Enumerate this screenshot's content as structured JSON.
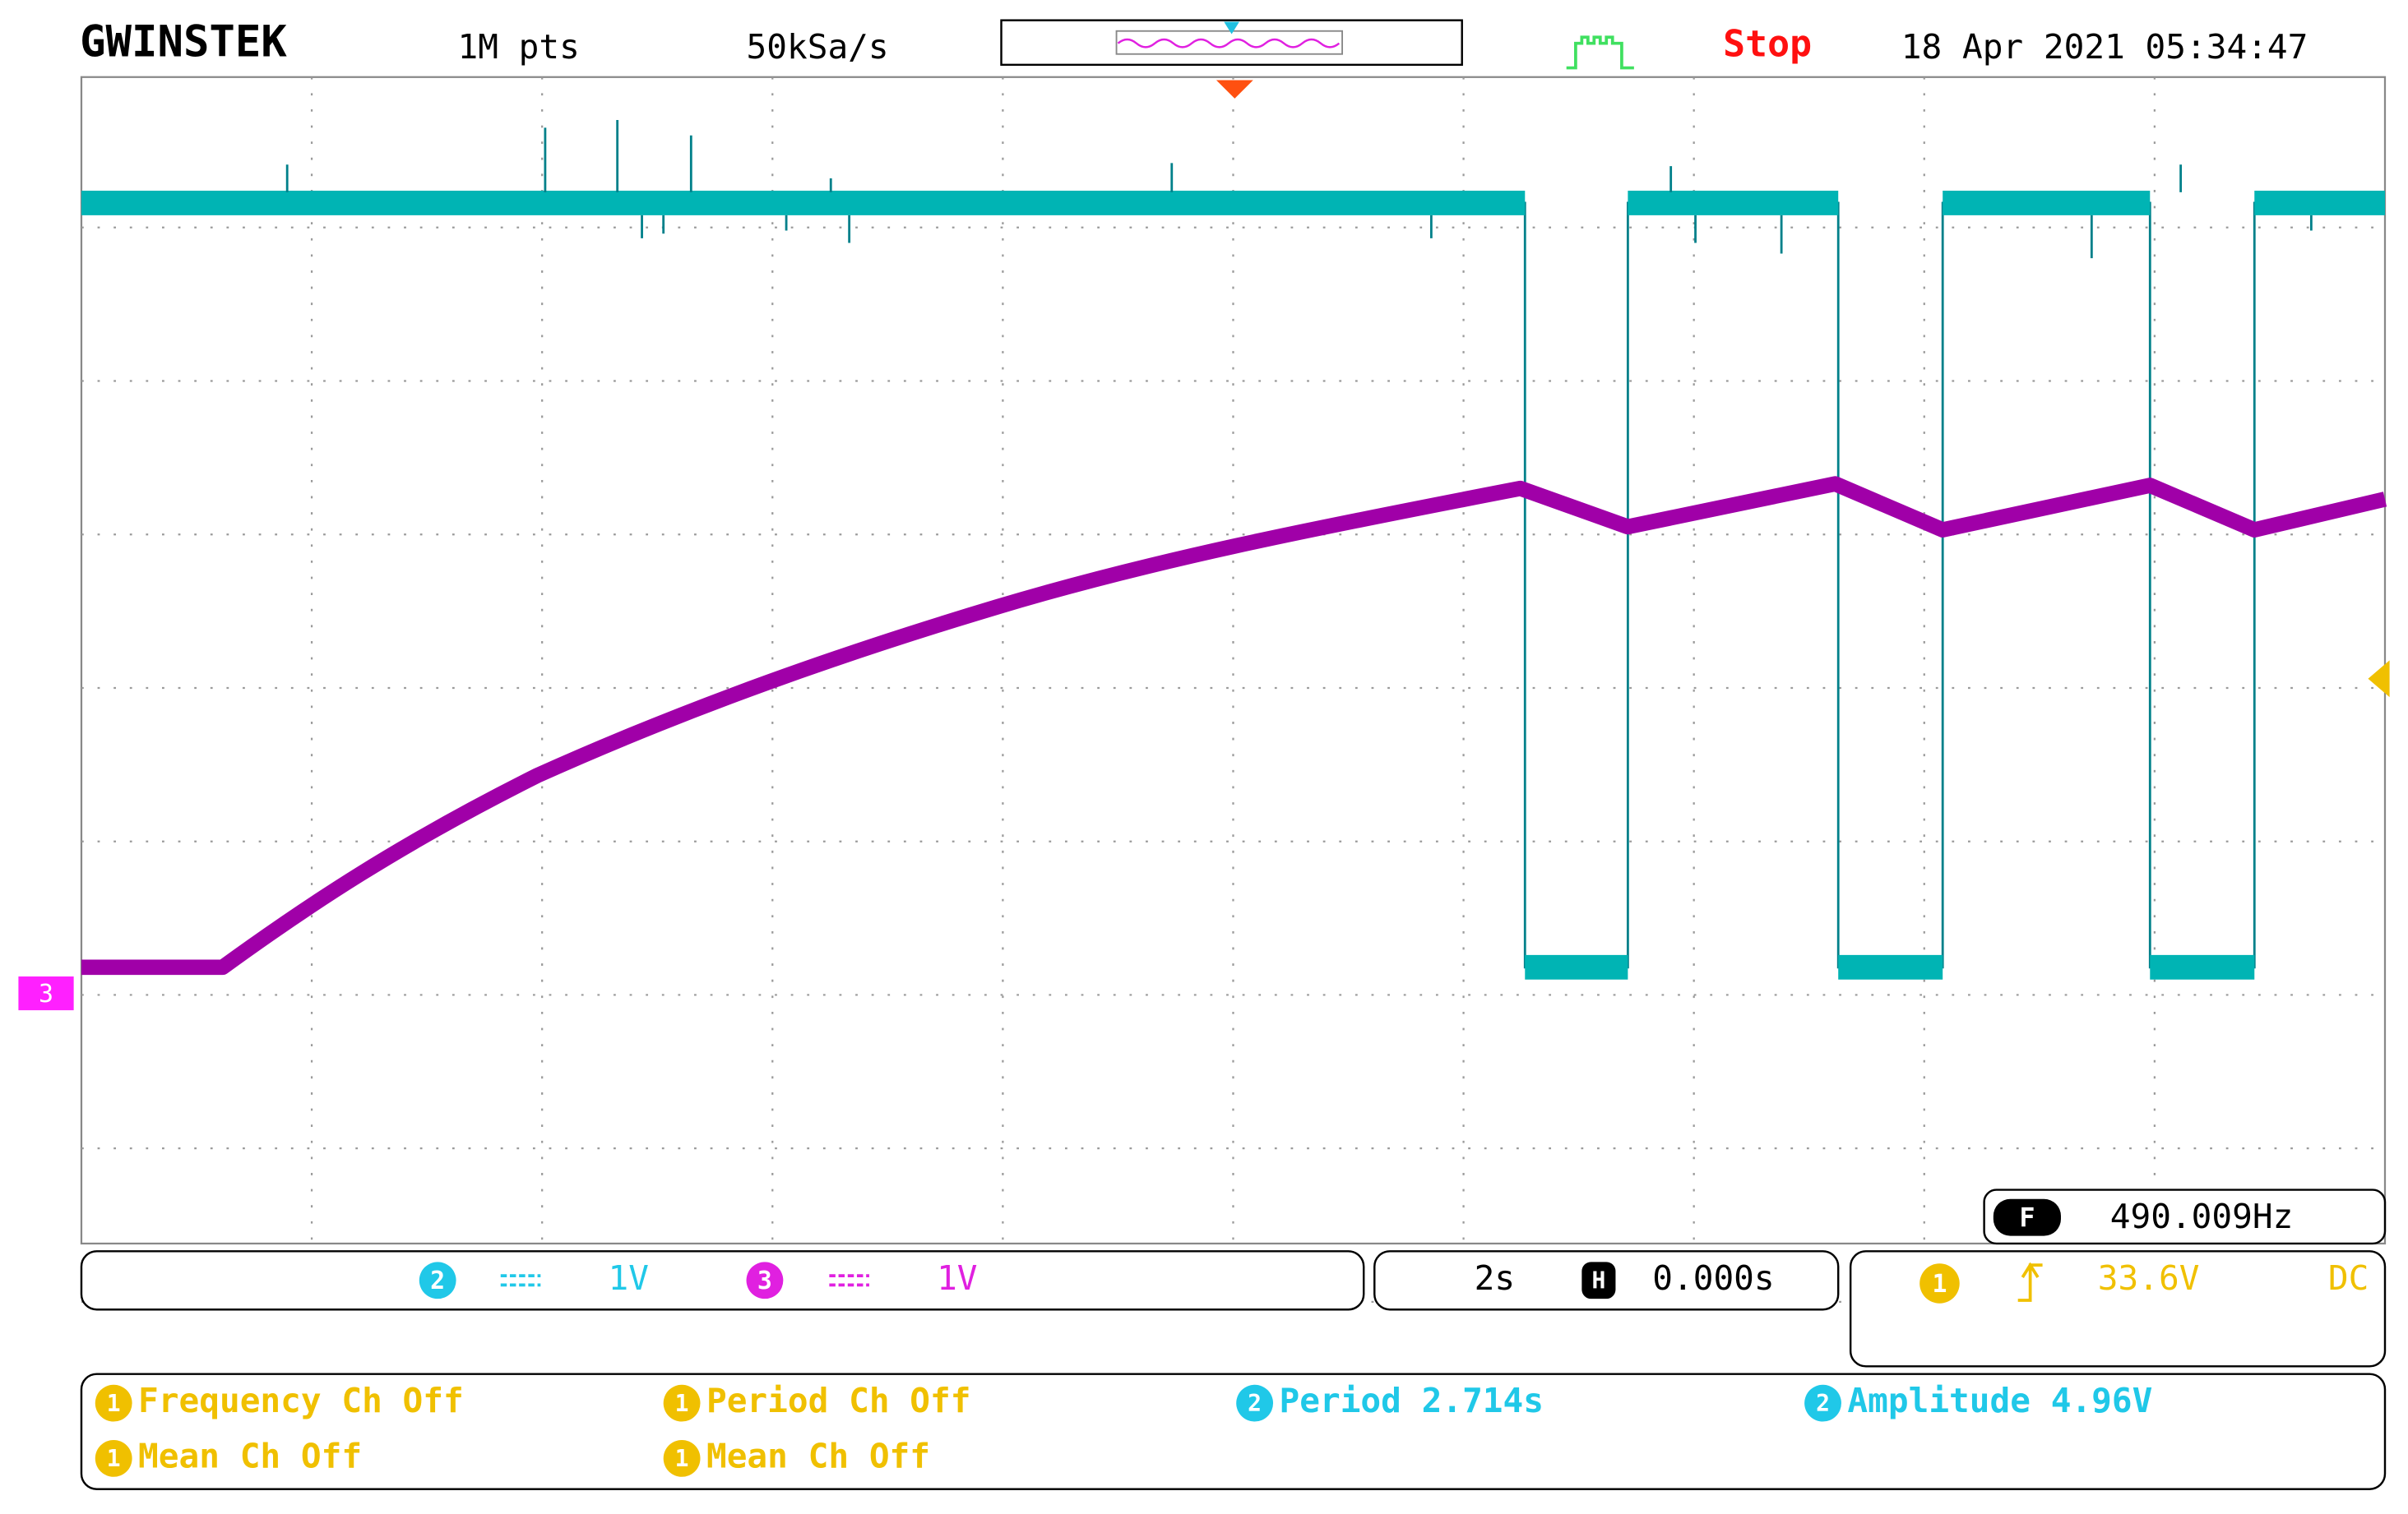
{
  "header": {
    "brand": "GWINSTEK",
    "memory": "1M pts",
    "sample_rate": "50kSa/s",
    "state": "Stop",
    "datetime": "18 Apr 2021 05:34:47"
  },
  "markers": {
    "ch3": "3"
  },
  "channels": [
    {
      "id": "2",
      "scale": "1V"
    },
    {
      "id": "3",
      "scale": "1V"
    }
  ],
  "timebase": {
    "scale": "2s",
    "h_icon": "H",
    "position": "0.000s"
  },
  "trigger": {
    "source": "1",
    "level": "33.6V",
    "coupling": "DC"
  },
  "counter": {
    "icon": "F",
    "frequency": "490.009Hz"
  },
  "measurements": [
    {
      "ch": "1",
      "text": "Frequency Ch Off"
    },
    {
      "ch": "1",
      "text": "Period Ch Off"
    },
    {
      "ch": "2",
      "text": "Period 2.714s"
    },
    {
      "ch": "2",
      "text": "Amplitude 4.96V"
    },
    {
      "ch": "1",
      "text": "Mean Ch Off"
    },
    {
      "ch": "1",
      "text": "Mean Ch Off"
    }
  ]
}
